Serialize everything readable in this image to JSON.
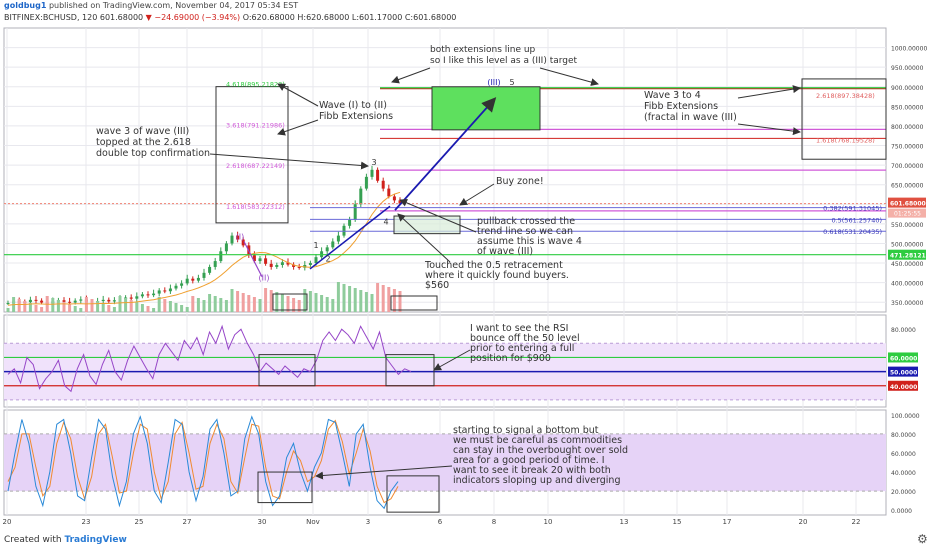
{
  "header": {
    "user": "goldbug1",
    "published": "published on TradingView.com, November 04, 2017 05:34 EST",
    "symbol_interval": "BITFINEX:BCHUSD, 120",
    "last": "601.68000",
    "change": "▼ −24.69000 (−3.94%)",
    "ohlc": "O:620.68000 H:620.68000 L:601.17000 C:601.68000"
  },
  "footer": {
    "created_with": "Created with",
    "brand": "TradingView",
    "settings_icon": "gear-icon"
  },
  "colors": {
    "green": "#2ecc40",
    "red": "#d0211c",
    "magenta": "#d05ad8",
    "blue": "#1a1ab0",
    "purple": "#9646c8",
    "lavender": "#f0e2fb",
    "grid": "#e8e8ee"
  },
  "chart_data": [
    {
      "type": "candlestick",
      "name": "price",
      "ylim": [
        325,
        1050
      ],
      "y_ticks": [
        "1000.00000",
        "950.00000",
        "900.00000",
        "850.00000",
        "800.00000",
        "750.00000",
        "700.00000",
        "650.00000",
        "600.00000",
        "550.00000",
        "500.00000",
        "450.00000",
        "400.00000",
        "350.00000"
      ],
      "x_ticks": [
        "20",
        "23",
        "25",
        "27",
        "30",
        "Nov",
        "3",
        "6",
        "8",
        "10",
        "13",
        "15",
        "17",
        "20",
        "22"
      ],
      "price_labels": {
        "last": "601.68000",
        "countdown": "01:25:55",
        "support": "471.28121"
      },
      "overlay_close": [
        348,
        352,
        351,
        350,
        356,
        354,
        349,
        347,
        352,
        355,
        351,
        349,
        354,
        357,
        352,
        350,
        353,
        356,
        352,
        355,
        358,
        362,
        359,
        365,
        370,
        368,
        372,
        380,
        378,
        385,
        392,
        398,
        410,
        405,
        412,
        425,
        440,
        455,
        480,
        500,
        520,
        510,
        495,
        470,
        455,
        462,
        448,
        440,
        445,
        452,
        446,
        440,
        438,
        445,
        450,
        465,
        480,
        490,
        505,
        520,
        545,
        560,
        600,
        640,
        670,
        688,
        660,
        640,
        620,
        610,
        602
      ],
      "fib_left": [
        {
          "ratio": "4.618",
          "value": "895.21823"
        },
        {
          "ratio": "3.618",
          "value": "791.21986"
        },
        {
          "ratio": "2.618",
          "value": "687.22149"
        },
        {
          "ratio": "1.618",
          "value": "583.22312"
        }
      ],
      "fib_right": [
        {
          "ratio": "2.618",
          "value": "897.38428"
        },
        {
          "ratio": "1.618",
          "value": "768.19528"
        }
      ],
      "retracement": [
        {
          "ratio": "0.382",
          "value": "591.31045"
        },
        {
          "ratio": "0.5",
          "value": "561.25740"
        },
        {
          "ratio": "0.618",
          "value": "531.20435"
        }
      ],
      "wave_labels": [
        "(I)",
        "(II)",
        "1",
        "2",
        "3",
        "4",
        "(III)",
        "5"
      ],
      "annotations": {
        "extensions": [
          "both extensions line up",
          "so I like this level as a (III) target"
        ],
        "wave_i_ii": [
          "Wave (I) to (II)",
          "Fibb Extensions"
        ],
        "wave_3_4": [
          "Wave 3 to 4",
          "Fibb Extensions",
          "(fractal in wave (III)"
        ],
        "wave_3_top": [
          "wave 3 of wave (III)",
          "topped at the 2.618",
          "double top confirmation"
        ],
        "buy_zone": [
          "Buy zone!"
        ],
        "pullback": [
          "pullback crossed the",
          "trend line so we can",
          "assume this is wave 4",
          "of wave (III)"
        ],
        "retrace_note": [
          "Touched the 0.5 retracement",
          "where it quickly found buyers.",
          "$560"
        ]
      }
    },
    {
      "type": "line",
      "name": "rsi",
      "ylim": [
        25,
        90
      ],
      "y_ticks": [
        "80.0000",
        "60.0000",
        "50.0000",
        "40.0000"
      ],
      "values": [
        48,
        52,
        42,
        60,
        55,
        38,
        45,
        50,
        58,
        40,
        36,
        52,
        62,
        47,
        41,
        55,
        65,
        50,
        44,
        58,
        68,
        60,
        52,
        45,
        62,
        70,
        64,
        58,
        72,
        66,
        74,
        62,
        78,
        70,
        82,
        66,
        76,
        80,
        70,
        62,
        50,
        56,
        52,
        48,
        54,
        50,
        46,
        52,
        50,
        58,
        72,
        78,
        72,
        80,
        76,
        70,
        82,
        74,
        66,
        78,
        60,
        54,
        48,
        52,
        50
      ],
      "note": [
        "I want to see the RSI",
        "bounce off the 50 level",
        "prior to entering a full",
        "position for $900"
      ]
    },
    {
      "type": "line",
      "name": "stochastic_rsi",
      "ylim": [
        -5,
        105
      ],
      "y_ticks": [
        "100.0000",
        "80.0000",
        "60.0000",
        "40.0000",
        "20.0000",
        "0.0000"
      ],
      "k_values": [
        20,
        60,
        95,
        70,
        25,
        5,
        40,
        90,
        95,
        60,
        15,
        10,
        55,
        95,
        85,
        35,
        5,
        30,
        80,
        98,
        70,
        20,
        8,
        50,
        95,
        90,
        40,
        10,
        35,
        85,
        95,
        60,
        15,
        20,
        75,
        98,
        80,
        30,
        5,
        15,
        55,
        70,
        40,
        20,
        45,
        60,
        95,
        92,
        60,
        25,
        80,
        90,
        45,
        10,
        2,
        20,
        30
      ],
      "d_values": [
        30,
        45,
        80,
        80,
        45,
        15,
        25,
        70,
        92,
        75,
        35,
        12,
        35,
        80,
        90,
        55,
        18,
        20,
        60,
        90,
        85,
        40,
        12,
        30,
        80,
        92,
        60,
        22,
        25,
        70,
        90,
        75,
        30,
        18,
        55,
        90,
        88,
        45,
        15,
        12,
        40,
        62,
        52,
        30,
        35,
        52,
        85,
        94,
        72,
        38,
        60,
        85,
        62,
        25,
        8,
        12,
        25
      ],
      "note": [
        "starting to signal a bottom but",
        "we must be careful as commodities",
        "can stay in the overbought over sold",
        "area for a good period of time. I",
        "want to see it break 20 with both",
        "indicators sloping up and diverging"
      ]
    }
  ]
}
